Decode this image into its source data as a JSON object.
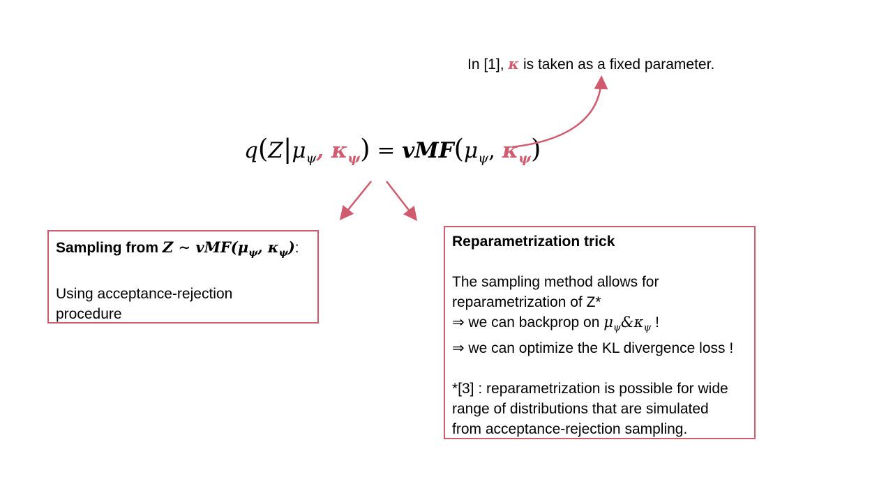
{
  "annotation": {
    "prefix": "In [1], ",
    "kappa_symbol": "κ",
    "suffix": " is taken as a fixed parameter."
  },
  "equation": {
    "q": "q",
    "z": "Z",
    "mu": "μ",
    "kappa": "κ",
    "psi": "ψ",
    "equals": "=",
    "vmf": "vMF"
  },
  "left_box": {
    "title_prefix": "Sampling from ",
    "title_math": "Z ∼ vMF(μ",
    "title_suffix": ":",
    "body_line1": "Using acceptance-rejection",
    "body_line2": "procedure"
  },
  "right_box": {
    "title": "Reparametrization trick",
    "line1": "The sampling method allows for",
    "line2": "reparametrization of Z*",
    "line3_prefix": "⇒ we can backprop on ",
    "line3_suffix": " !",
    "line4": "⇒ we can optimize the KL divergence loss !",
    "footnote1": "*[3] : reparametrization is possible for wide",
    "footnote2": "range of distributions that are simulated",
    "footnote3": "from acceptance-rejection sampling."
  },
  "colors": {
    "accent": "#d05a6e"
  }
}
